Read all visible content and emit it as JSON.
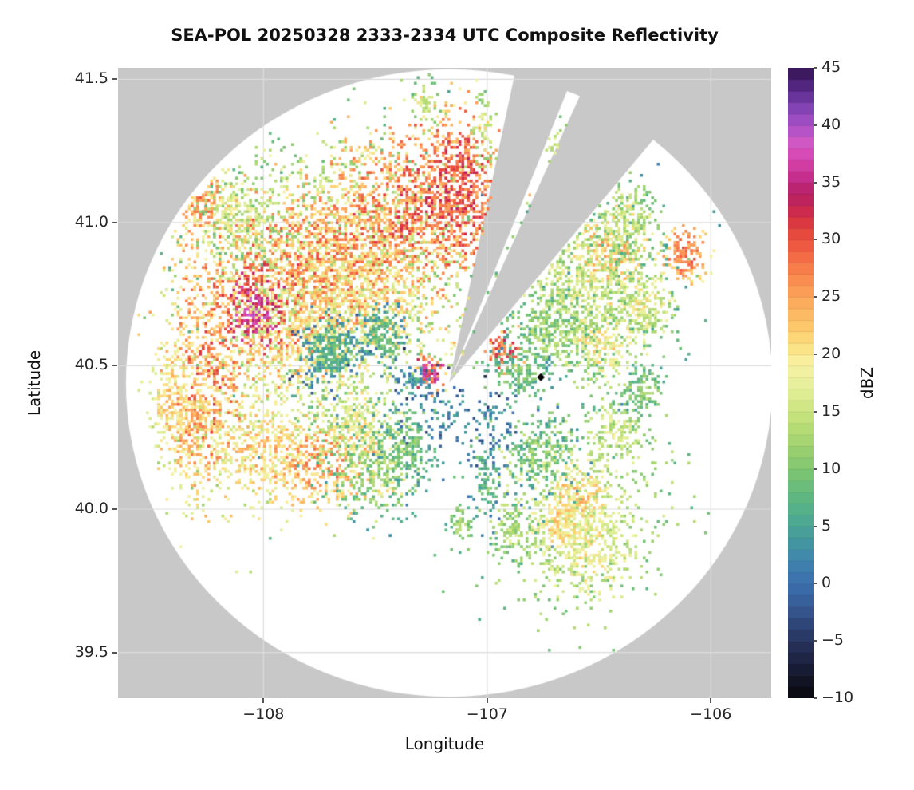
{
  "chart_data": {
    "type": "heatmap",
    "subtype": "radar-composite-reflectivity-ppi",
    "title": "SEA-POL 20250328 2333-2334 UTC Composite Reflectivity",
    "xlabel": "Longitude",
    "ylabel": "Latitude",
    "xlim": [
      -108.65,
      -105.73
    ],
    "ylim": [
      39.34,
      41.54
    ],
    "grid": true,
    "grid_color": "#dcdcdc",
    "background_color": "#c8c8c8",
    "data_area_color": "#ffffff",
    "x_ticks": [
      {
        "value": -108,
        "label": "−108"
      },
      {
        "value": -107,
        "label": "−107"
      },
      {
        "value": -106,
        "label": "−106"
      }
    ],
    "y_ticks": [
      {
        "value": 41.5,
        "label": "41.5"
      },
      {
        "value": 41.0,
        "label": "41.0"
      },
      {
        "value": 40.5,
        "label": "40.5"
      },
      {
        "value": 40.0,
        "label": "40.0"
      },
      {
        "value": 39.5,
        "label": "39.5"
      }
    ],
    "coverage": {
      "center_lon": -107.17,
      "center_lat": 40.44,
      "radius_lat_deg": 1.095,
      "radius_lon_deg": 1.445
    },
    "missing_wedges_deg": [
      {
        "start": 68,
        "end": 78
      },
      {
        "start": 50,
        "end": 65.5
      }
    ],
    "radar_marker": {
      "lon": -106.76,
      "lat": 40.46,
      "symbol": "diamond",
      "color": "#000000"
    },
    "colorbar": {
      "label": "dBZ",
      "min": -10,
      "max": 45,
      "ticks": [
        {
          "value": 45,
          "label": "45"
        },
        {
          "value": 40,
          "label": "40"
        },
        {
          "value": 35,
          "label": "35"
        },
        {
          "value": 30,
          "label": "30"
        },
        {
          "value": 25,
          "label": "25"
        },
        {
          "value": 20,
          "label": "20"
        },
        {
          "value": 15,
          "label": "15"
        },
        {
          "value": 10,
          "label": "10"
        },
        {
          "value": 5,
          "label": "5"
        },
        {
          "value": 0,
          "label": "0"
        },
        {
          "value": -5,
          "label": "−5"
        },
        {
          "value": -10,
          "label": "−10"
        }
      ]
    },
    "colormap_stops": [
      [
        -10,
        "#08080c"
      ],
      [
        -8,
        "#15162b"
      ],
      [
        -6,
        "#222a4d"
      ],
      [
        -4,
        "#2c3f70"
      ],
      [
        -2,
        "#365b94"
      ],
      [
        0,
        "#3c6fae"
      ],
      [
        2,
        "#3f84ae"
      ],
      [
        4,
        "#459a9e"
      ],
      [
        6,
        "#4fae8d"
      ],
      [
        8,
        "#63ba7c"
      ],
      [
        10,
        "#80c672"
      ],
      [
        12,
        "#9ed26f"
      ],
      [
        14,
        "#bcdf75"
      ],
      [
        16,
        "#d8ea8c"
      ],
      [
        18,
        "#eef2a3"
      ],
      [
        19.5,
        "#f8ee9c"
      ],
      [
        21,
        "#fcdd7c"
      ],
      [
        23,
        "#fdc167"
      ],
      [
        25,
        "#fca55a"
      ],
      [
        27,
        "#f9864e"
      ],
      [
        29,
        "#f26342"
      ],
      [
        31,
        "#e2403c"
      ],
      [
        32.5,
        "#cd2b4e"
      ],
      [
        34,
        "#b51f63"
      ],
      [
        35.5,
        "#c52e8d"
      ],
      [
        37,
        "#d944ad"
      ],
      [
        38.5,
        "#cf58c4"
      ],
      [
        40,
        "#a952c9"
      ],
      [
        41.5,
        "#8343b4"
      ],
      [
        43,
        "#5c2d8f"
      ],
      [
        45,
        "#321250"
      ]
    ],
    "echo_regions": [
      {
        "lon": -107.65,
        "lat": 40.9,
        "slon": 0.33,
        "slat": 0.23,
        "dbz": 15,
        "spread": 4,
        "n": 900
      },
      {
        "lon": -106.55,
        "lat": 40.75,
        "slon": 0.2,
        "slat": 0.17,
        "dbz": 13,
        "spread": 4,
        "n": 420
      },
      {
        "lon": -106.62,
        "lat": 40.02,
        "slon": 0.21,
        "slat": 0.18,
        "dbz": 16,
        "spread": 4,
        "n": 600
      },
      {
        "lon": -107.95,
        "lat": 40.78,
        "slon": 0.22,
        "slat": 0.16,
        "dbz": 27,
        "spread": 6,
        "n": 850
      },
      {
        "lon": -108.04,
        "lat": 40.7,
        "slon": 0.07,
        "slat": 0.07,
        "dbz": 36,
        "spread": 4,
        "n": 220
      },
      {
        "lon": -107.72,
        "lat": 40.87,
        "slon": 0.18,
        "slat": 0.13,
        "dbz": 25,
        "spread": 6,
        "n": 650
      },
      {
        "lon": -107.5,
        "lat": 41.0,
        "slon": 0.18,
        "slat": 0.15,
        "dbz": 26,
        "spread": 6,
        "n": 650
      },
      {
        "lon": -107.28,
        "lat": 41.06,
        "slon": 0.13,
        "slat": 0.16,
        "dbz": 29,
        "spread": 5,
        "n": 600
      },
      {
        "lon": -107.12,
        "lat": 41.12,
        "slon": 0.08,
        "slat": 0.13,
        "dbz": 30,
        "spread": 5,
        "n": 420
      },
      {
        "lon": -107.55,
        "lat": 40.72,
        "slon": 0.22,
        "slat": 0.13,
        "dbz": 20,
        "spread": 6,
        "n": 600
      },
      {
        "lon": -107.85,
        "lat": 40.55,
        "slon": 0.18,
        "slat": 0.1,
        "dbz": 21,
        "spread": 6,
        "n": 450
      },
      {
        "lon": -108.25,
        "lat": 40.48,
        "slon": 0.1,
        "slat": 0.22,
        "dbz": 26,
        "spread": 6,
        "n": 600
      },
      {
        "lon": -108.33,
        "lat": 40.28,
        "slon": 0.07,
        "slat": 0.1,
        "dbz": 24,
        "spread": 5,
        "n": 280
      },
      {
        "lon": -108.28,
        "lat": 41.1,
        "slon": 0.06,
        "slat": 0.08,
        "dbz": 25,
        "spread": 5,
        "n": 220
      },
      {
        "lon": -108.1,
        "lat": 41.02,
        "slon": 0.1,
        "slat": 0.08,
        "dbz": 16,
        "spread": 5,
        "n": 260
      },
      {
        "lon": -107.7,
        "lat": 40.56,
        "slon": 0.07,
        "slat": 0.055,
        "dbz": 7,
        "spread": 3,
        "n": 260
      },
      {
        "lon": -107.47,
        "lat": 40.61,
        "slon": 0.05,
        "slat": 0.05,
        "dbz": 8,
        "spread": 3,
        "n": 140
      },
      {
        "lon": -108.02,
        "lat": 40.22,
        "slon": 0.13,
        "slat": 0.09,
        "dbz": 21,
        "spread": 5,
        "n": 380
      },
      {
        "lon": -107.75,
        "lat": 40.17,
        "slon": 0.18,
        "slat": 0.09,
        "dbz": 24,
        "spread": 5,
        "n": 500
      },
      {
        "lon": -107.52,
        "lat": 40.14,
        "slon": 0.11,
        "slat": 0.09,
        "dbz": 12,
        "spread": 4,
        "n": 300
      },
      {
        "lon": -107.36,
        "lat": 40.22,
        "slon": 0.07,
        "slat": 0.07,
        "dbz": 9,
        "spread": 4,
        "n": 180
      },
      {
        "lon": -107.58,
        "lat": 40.3,
        "slon": 0.12,
        "slat": 0.08,
        "dbz": 17,
        "spread": 5,
        "n": 260
      },
      {
        "lon": -108.42,
        "lat": 40.4,
        "slon": 0.05,
        "slat": 0.08,
        "dbz": 22,
        "spread": 4,
        "n": 140
      },
      {
        "lon": -107.18,
        "lat": 40.33,
        "slon": 0.1,
        "slat": 0.06,
        "dbz": 3,
        "spread": 4,
        "n": 70
      },
      {
        "lon": -106.98,
        "lat": 40.32,
        "slon": 0.05,
        "slat": 0.05,
        "dbz": 4,
        "spread": 3,
        "n": 50
      },
      {
        "lon": -107.26,
        "lat": 40.48,
        "slon": 0.035,
        "slat": 0.03,
        "dbz": 33,
        "spread": 8,
        "n": 80
      },
      {
        "lon": -107.33,
        "lat": 40.45,
        "slon": 0.05,
        "slat": 0.03,
        "dbz": 4,
        "spread": 4,
        "n": 60
      },
      {
        "lon": -106.94,
        "lat": 40.56,
        "slon": 0.035,
        "slat": 0.035,
        "dbz": 30,
        "spread": 6,
        "n": 80
      },
      {
        "lon": -107.28,
        "lat": 41.42,
        "slon": 0.03,
        "slat": 0.05,
        "dbz": 15,
        "spread": 3,
        "n": 50
      },
      {
        "lon": -107.02,
        "lat": 41.33,
        "slon": 0.025,
        "slat": 0.07,
        "dbz": 16,
        "spread": 3,
        "n": 55
      },
      {
        "lon": -106.7,
        "lat": 41.28,
        "slon": 0.025,
        "slat": 0.06,
        "dbz": 15,
        "spread": 3,
        "n": 45
      },
      {
        "lon": -106.62,
        "lat": 40.82,
        "slon": 0.16,
        "slat": 0.13,
        "dbz": 16,
        "spread": 5,
        "n": 520
      },
      {
        "lon": -106.45,
        "lat": 40.9,
        "slon": 0.09,
        "slat": 0.09,
        "dbz": 22,
        "spread": 5,
        "n": 280
      },
      {
        "lon": -106.12,
        "lat": 40.89,
        "slon": 0.045,
        "slat": 0.045,
        "dbz": 28,
        "spread": 4,
        "n": 130
      },
      {
        "lon": -106.72,
        "lat": 40.62,
        "slon": 0.11,
        "slat": 0.07,
        "dbz": 12,
        "spread": 4,
        "n": 260
      },
      {
        "lon": -106.5,
        "lat": 40.58,
        "slon": 0.09,
        "slat": 0.06,
        "dbz": 19,
        "spread": 5,
        "n": 220
      },
      {
        "lon": -106.86,
        "lat": 40.48,
        "slon": 0.07,
        "slat": 0.05,
        "dbz": 10,
        "spread": 4,
        "n": 150
      },
      {
        "lon": -106.3,
        "lat": 40.72,
        "slon": 0.07,
        "slat": 0.06,
        "dbz": 18,
        "spread": 5,
        "n": 170
      },
      {
        "lon": -106.38,
        "lat": 41.0,
        "slon": 0.08,
        "slat": 0.07,
        "dbz": 14,
        "spread": 4,
        "n": 200
      },
      {
        "lon": -106.76,
        "lat": 40.2,
        "slon": 0.09,
        "slat": 0.07,
        "dbz": 10,
        "spread": 4,
        "n": 240
      },
      {
        "lon": -106.55,
        "lat": 39.86,
        "slon": 0.11,
        "slat": 0.09,
        "dbz": 19,
        "spread": 4,
        "n": 300
      },
      {
        "lon": -106.88,
        "lat": 39.92,
        "slon": 0.05,
        "slat": 0.05,
        "dbz": 14,
        "spread": 4,
        "n": 110
      },
      {
        "lon": -107.02,
        "lat": 40.1,
        "slon": 0.04,
        "slat": 0.07,
        "dbz": 8,
        "spread": 4,
        "n": 100
      },
      {
        "lon": -106.42,
        "lat": 40.28,
        "slon": 0.06,
        "slat": 0.05,
        "dbz": 16,
        "spread": 4,
        "n": 130
      },
      {
        "lon": -106.3,
        "lat": 40.42,
        "slon": 0.05,
        "slat": 0.04,
        "dbz": 12,
        "spread": 4,
        "n": 100
      },
      {
        "lon": -107.12,
        "lat": 39.95,
        "slon": 0.03,
        "slat": 0.04,
        "dbz": 12,
        "spread": 3,
        "n": 50
      },
      {
        "lon": -106.6,
        "lat": 40.05,
        "slon": 0.07,
        "slat": 0.06,
        "dbz": 22,
        "spread": 4,
        "n": 160
      },
      {
        "lon": -106.68,
        "lat": 39.95,
        "slon": 0.06,
        "slat": 0.05,
        "dbz": 21,
        "spread": 4,
        "n": 140
      }
    ]
  }
}
